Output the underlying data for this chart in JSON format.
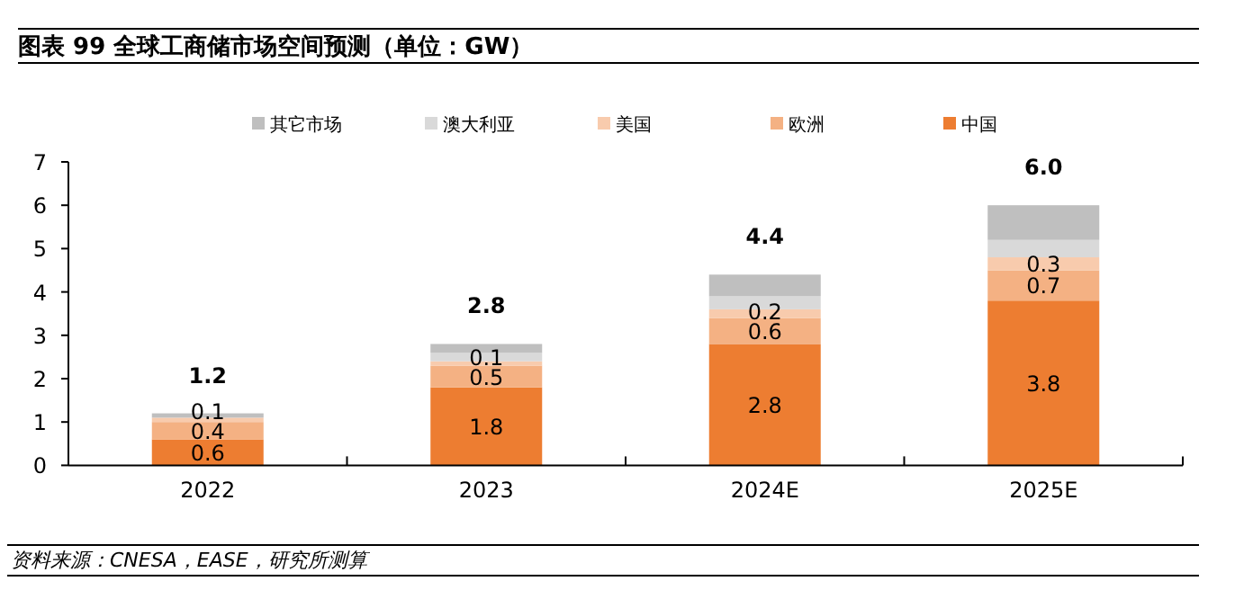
{
  "chart_data": {
    "type": "bar",
    "title": "图表 99  全球工商储市场空间预测（单位：GW）",
    "stacked": true,
    "categories": [
      "2022",
      "2023",
      "2024E",
      "2025E"
    ],
    "series": [
      {
        "name": "中国",
        "color": "#ed7d31",
        "values": [
          0.6,
          1.8,
          2.8,
          3.8
        ],
        "value_labels": [
          "0.6",
          "1.8",
          "2.8",
          "3.8"
        ]
      },
      {
        "name": "欧洲",
        "color": "#f4b183",
        "values": [
          0.4,
          0.5,
          0.6,
          0.7
        ],
        "value_labels": [
          "0.4",
          "0.5",
          "0.6",
          "0.7"
        ]
      },
      {
        "name": "美国",
        "color": "#f8cbad",
        "values": [
          0.1,
          0.1,
          0.2,
          0.3
        ],
        "value_labels": [
          "0.1",
          "0.1",
          "0.2",
          "0.3"
        ]
      },
      {
        "name": "澳大利亚",
        "color": "#d9d9d9",
        "values": [
          null,
          0.2,
          0.3,
          0.4
        ]
      },
      {
        "name": "其它市场",
        "color": "#bfbfbf",
        "values": [
          0.1,
          0.2,
          0.5,
          0.8
        ]
      }
    ],
    "totals": [
      "1.2",
      "2.8",
      "4.4",
      "6.0"
    ],
    "ylim": [
      0,
      7
    ],
    "yticks": [
      0,
      1,
      2,
      3,
      4,
      5,
      6,
      7
    ],
    "grid": false,
    "legend": "top",
    "annotations": [
      "资料来源：CNESA，EASE，研究所测算"
    ]
  }
}
